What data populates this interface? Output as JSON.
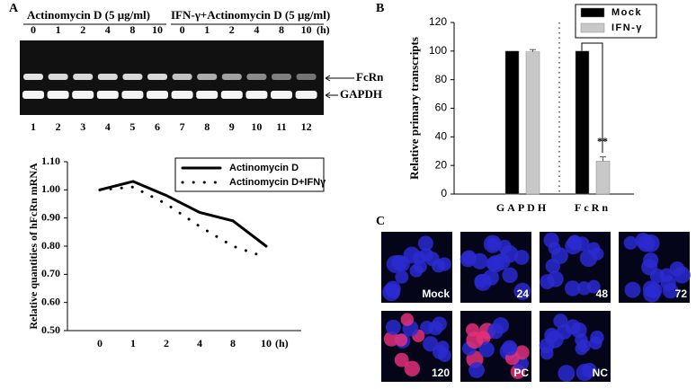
{
  "labels": [
    "A",
    "B",
    "C"
  ],
  "gel": {
    "groups": [
      "Actinomycin D (5 μg/ml)",
      "IFN-γ+Actinomycin D (5 μg/ml)"
    ],
    "times": [
      "0",
      "1",
      "2",
      "4",
      "8",
      "10",
      "0",
      "1",
      "2",
      "4",
      "8",
      "10"
    ],
    "time_unit": "(h)",
    "lanes": [
      "1",
      "2",
      "3",
      "4",
      "5",
      "6",
      "7",
      "8",
      "9",
      "10",
      "11",
      "12"
    ],
    "bands": [
      "FcRn",
      "GAPDH"
    ]
  },
  "chart_data": [
    {
      "type": "line",
      "y_label": "Relative quantities of hFcRn mRNA",
      "categories": [
        "0",
        "1",
        "2",
        "4",
        "8",
        "10"
      ],
      "x_unit": "(h)",
      "series": [
        {
          "name": "Actinomycin D",
          "color": "#000000",
          "style": "solid",
          "values": [
            1.0,
            1.03,
            0.98,
            0.92,
            0.89,
            0.8
          ]
        },
        {
          "name": "Actinomycin D+IFNγ",
          "color": "#000000",
          "style": "dotted",
          "values": [
            1.0,
            1.01,
            0.95,
            0.87,
            0.8,
            0.76
          ]
        }
      ],
      "ylim": [
        0.5,
        1.1
      ],
      "yticks": [
        {
          "value": 0.5,
          "label": "0.50"
        },
        {
          "value": 0.6,
          "label": "0.60"
        },
        {
          "value": 0.7,
          "label": "0.70"
        },
        {
          "value": 0.8,
          "label": "0.80"
        },
        {
          "value": 0.9,
          "label": "0.90"
        },
        {
          "value": 1.0,
          "label": "1.00"
        },
        {
          "value": 1.1,
          "label": "1.10"
        }
      ],
      "legend": "upper right"
    },
    {
      "type": "bar",
      "y_label": "Relative primary transcripts",
      "categories": [
        "GAPDH",
        "FcRn"
      ],
      "series": [
        {
          "name": "Mock",
          "color": "#000000",
          "values": [
            100,
            100
          ]
        },
        {
          "name": "IFN-γ",
          "color": "#c8c8c8",
          "values": [
            99.5,
            23
          ],
          "errors": [
            1.5,
            3
          ]
        }
      ],
      "ylim": [
        0,
        120
      ],
      "yticks": [
        0,
        20,
        40,
        60,
        80,
        100,
        120
      ],
      "annotations": [
        "**"
      ],
      "legend": "upper right"
    }
  ],
  "micrographs": [
    "Mock",
    "24",
    "48",
    "72",
    "120",
    "PC",
    "NC"
  ]
}
